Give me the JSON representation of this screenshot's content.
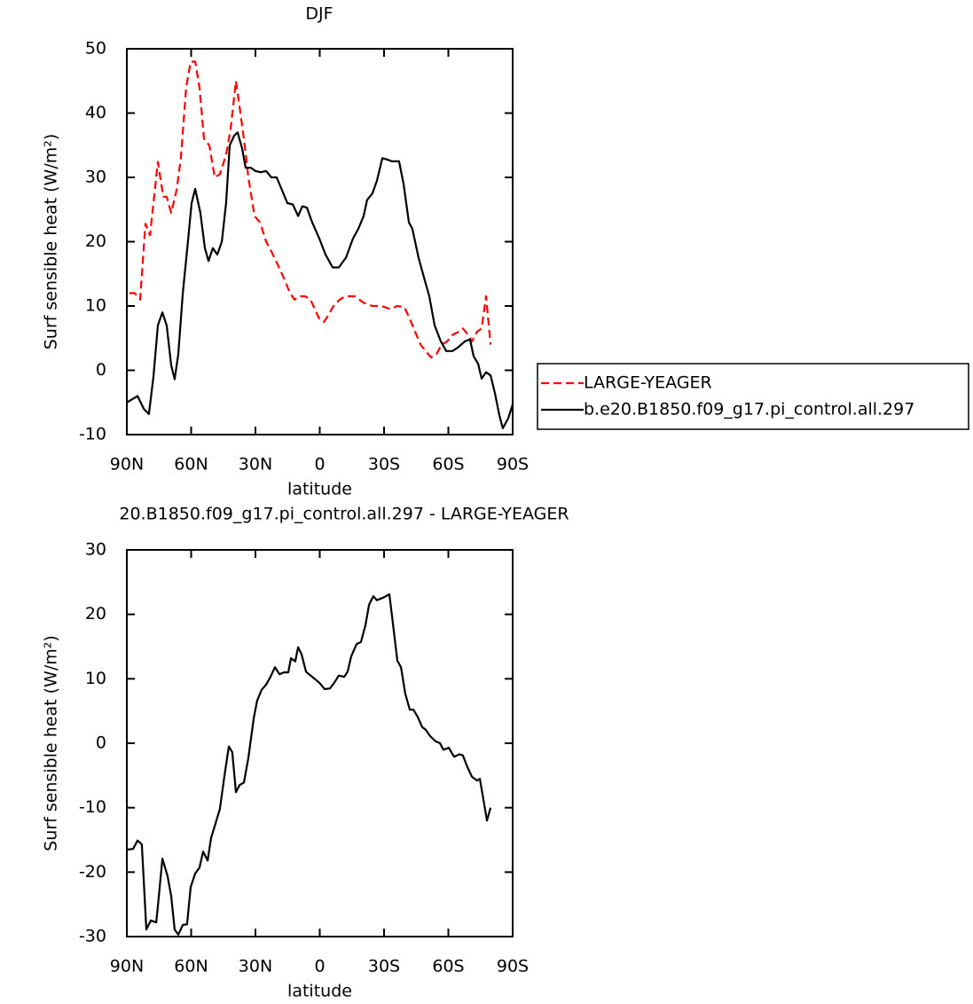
{
  "chart_data": [
    {
      "type": "line",
      "title": "DJF",
      "ylabel": "Surf sensible heat (W/m²)",
      "xlabel": "latitude",
      "xlim": [
        90,
        -90
      ],
      "xticks": [
        {
          "value": 90,
          "label": "90N"
        },
        {
          "value": 60,
          "label": "60N"
        },
        {
          "value": 30,
          "label": "30N"
        },
        0,
        {
          "value": -30,
          "label": "30S"
        },
        {
          "value": -60,
          "label": "60S"
        },
        {
          "value": -90,
          "label": "90S"
        }
      ],
      "ylim": [
        -10,
        50
      ],
      "yticks": [
        -10,
        0,
        10,
        20,
        30,
        40,
        50
      ],
      "legend": "right",
      "series": [
        {
          "name": "LARGE-YEAGER",
          "color": "#ff0000",
          "dashed": true,
          "x": [
            88.8,
            86.3,
            83.8,
            81.3,
            79.2,
            75.5,
            73.0,
            71.4,
            69.3,
            66.8,
            64.8,
            62.3,
            60.2,
            58.1,
            56.1,
            54.0,
            51.5,
            49.0,
            46.6,
            43.7,
            41.6,
            39.1,
            37.0,
            35.0,
            33.3,
            30.4,
            27.9,
            25.0,
            22.6,
            19.7,
            16.3,
            13.9,
            11.8,
            9.3,
            6.8,
            4.3,
            2.3,
            0.2,
            -1.9,
            -3.9,
            -6.4,
            -9.3,
            -11.8,
            -16.3,
            -20.5,
            -24.6,
            -28.8,
            -32.9,
            -36.2,
            -39.5,
            -42.0,
            -44.5,
            -47.0,
            -49.4,
            -51.9,
            -54.4,
            -56.9,
            -59.4,
            -61.9,
            -64.8,
            -66.8,
            -69.3,
            -71.0,
            -73.4,
            -75.5,
            -77.6,
            -79.7
          ],
          "values": [
            12,
            12,
            11,
            22.8,
            21,
            32.4,
            27,
            27,
            24.5,
            28,
            33,
            44,
            48,
            48,
            44,
            36,
            35,
            30,
            30.5,
            33.5,
            37.5,
            45,
            40,
            35,
            30,
            24,
            23,
            20,
            18.5,
            16.5,
            14,
            12,
            11,
            11.5,
            11.5,
            11,
            9.5,
            8,
            7.5,
            8.5,
            10,
            11,
            11.5,
            11.5,
            10.5,
            10,
            10,
            9.5,
            10,
            9.8,
            8,
            6,
            4,
            3,
            2,
            2.5,
            4,
            4.5,
            5.5,
            6,
            6.5,
            5.5,
            4.5,
            6,
            6.5,
            11.5,
            4
          ]
        },
        {
          "name": "b.e20.B1850.f09_g17.pi_control.all.297",
          "color": "#000000",
          "dashed": false,
          "x": [
            90,
            85.0,
            82.1,
            79.7,
            77.6,
            75.5,
            73.4,
            71.4,
            69.3,
            67.7,
            66.0,
            63.9,
            61.5,
            59.8,
            58.1,
            55.7,
            53.6,
            51.9,
            49.9,
            47.8,
            45.7,
            43.7,
            42.0,
            39.9,
            38.3,
            36.2,
            34.6,
            32.1,
            30.0,
            27.5,
            25.0,
            22.6,
            20.1,
            17.6,
            15.1,
            12.6,
            10.1,
            8.1,
            6.0,
            3.5,
            0.2,
            -2.7,
            -6.0,
            -8.9,
            -12.2,
            -15.5,
            -18.0,
            -20.5,
            -22.1,
            -24.6,
            -26.7,
            -29.2,
            -31.2,
            -33.7,
            -37.0,
            -39.1,
            -41.6,
            -43.2,
            -46.1,
            -48.6,
            -51.1,
            -53.6,
            -56.5,
            -59.0,
            -61.9,
            -64.3,
            -67.7,
            -70.1,
            -71.8,
            -73.9,
            -75.5,
            -77.6,
            -79.7,
            -81.7,
            -83.8,
            -85.4,
            -87.9,
            -90
          ],
          "values": [
            -5,
            -4,
            -6,
            -6.8,
            -1,
            7,
            9,
            7,
            0.8,
            -1.4,
            2.5,
            12,
            20,
            26,
            28.2,
            24.5,
            19,
            17,
            19,
            18,
            20,
            26,
            35,
            36.5,
            37,
            34.5,
            31.5,
            31.5,
            31,
            30.8,
            31,
            30,
            30,
            28,
            26,
            25.8,
            24,
            25.5,
            25.3,
            23,
            20.5,
            18,
            16,
            16,
            17.5,
            20.5,
            22,
            24,
            26.5,
            27.5,
            29.5,
            33,
            32.8,
            32.5,
            32.5,
            29,
            23,
            22,
            17.5,
            14.5,
            11.5,
            7,
            4.5,
            3,
            3,
            3.5,
            4.5,
            4.8,
            2.2,
            1,
            -1.3,
            -0.3,
            -0.8,
            -3.5,
            -7,
            -9,
            -7.5,
            -5.3
          ]
        }
      ]
    },
    {
      "type": "line",
      "title": "20.B1850.f09_g17.pi_control.all.297 - LARGE-YEAGER",
      "ylabel": "Surf sensible heat (W/m²)",
      "xlabel": "latitude",
      "xlim": [
        90,
        -90
      ],
      "xticks": [
        {
          "value": 90,
          "label": "90N"
        },
        {
          "value": 60,
          "label": "60N"
        },
        {
          "value": 30,
          "label": "30N"
        },
        0,
        {
          "value": -30,
          "label": "30S"
        },
        {
          "value": -60,
          "label": "60S"
        },
        {
          "value": -90,
          "label": "90S"
        }
      ],
      "ylim": [
        -30,
        30
      ],
      "yticks": [
        -30,
        -20,
        -10,
        0,
        10,
        20,
        30
      ],
      "color": "#000000",
      "x": [
        90,
        87.1,
        85.0,
        83.0,
        80.9,
        78.8,
        76.3,
        75.5,
        73.4,
        71.0,
        69.3,
        67.7,
        66.0,
        63.9,
        61.9,
        60.2,
        58.1,
        56.1,
        54.4,
        52.3,
        50.7,
        48.6,
        46.6,
        44.5,
        42.4,
        40.8,
        39.1,
        37.4,
        35.4,
        33.3,
        30.8,
        29.2,
        27.1,
        25.0,
        23.0,
        20.9,
        18.8,
        16.8,
        14.7,
        13.4,
        11.4,
        10.1,
        8.5,
        6.4,
        3.5,
        0.2,
        -2.3,
        -4.8,
        -6.8,
        -8.9,
        -11.4,
        -13.0,
        -14.7,
        -17.2,
        -19.2,
        -21.3,
        -23.0,
        -25.0,
        -26.7,
        -29.6,
        -32.5,
        -34.6,
        -36.2,
        -37.9,
        -39.9,
        -42.0,
        -43.7,
        -45.7,
        -47.8,
        -49.4,
        -51.5,
        -54.0,
        -56.1,
        -57.7,
        -60.2,
        -62.7,
        -65.2,
        -66.8,
        -68.9,
        -71.0,
        -73.4,
        -74.7,
        -76.8,
        -78.0,
        -79.7
      ],
      "values": [
        -16.5,
        -16.4,
        -15.1,
        -15.7,
        -28.9,
        -27.5,
        -27.8,
        -25.3,
        -17.9,
        -20.6,
        -23.7,
        -28.9,
        -29.7,
        -28.2,
        -28.1,
        -22.3,
        -20.2,
        -19.3,
        -16.8,
        -18.2,
        -14.7,
        -12.4,
        -10.2,
        -5.1,
        -0.5,
        -1.4,
        -7.6,
        -6.5,
        -6.1,
        -2.3,
        3.9,
        6.6,
        8.3,
        9.1,
        10.3,
        11.8,
        10.7,
        11.0,
        11.0,
        13.2,
        12.7,
        14.9,
        13.8,
        11.1,
        10.3,
        9.4,
        8.4,
        8.5,
        9.4,
        10.5,
        10.3,
        11.1,
        13.5,
        15.4,
        15.7,
        18.3,
        21.5,
        22.8,
        22.2,
        22.6,
        23.1,
        17.3,
        12.8,
        11.8,
        7.7,
        5.2,
        5.2,
        4.1,
        2.5,
        2.1,
        1.1,
        0.3,
        0.0,
        -1.0,
        -0.7,
        -2.1,
        -1.7,
        -1.9,
        -3.7,
        -5.2,
        -5.8,
        -5.5,
        -9.6,
        -12.0,
        -10.0
      ]
    }
  ]
}
